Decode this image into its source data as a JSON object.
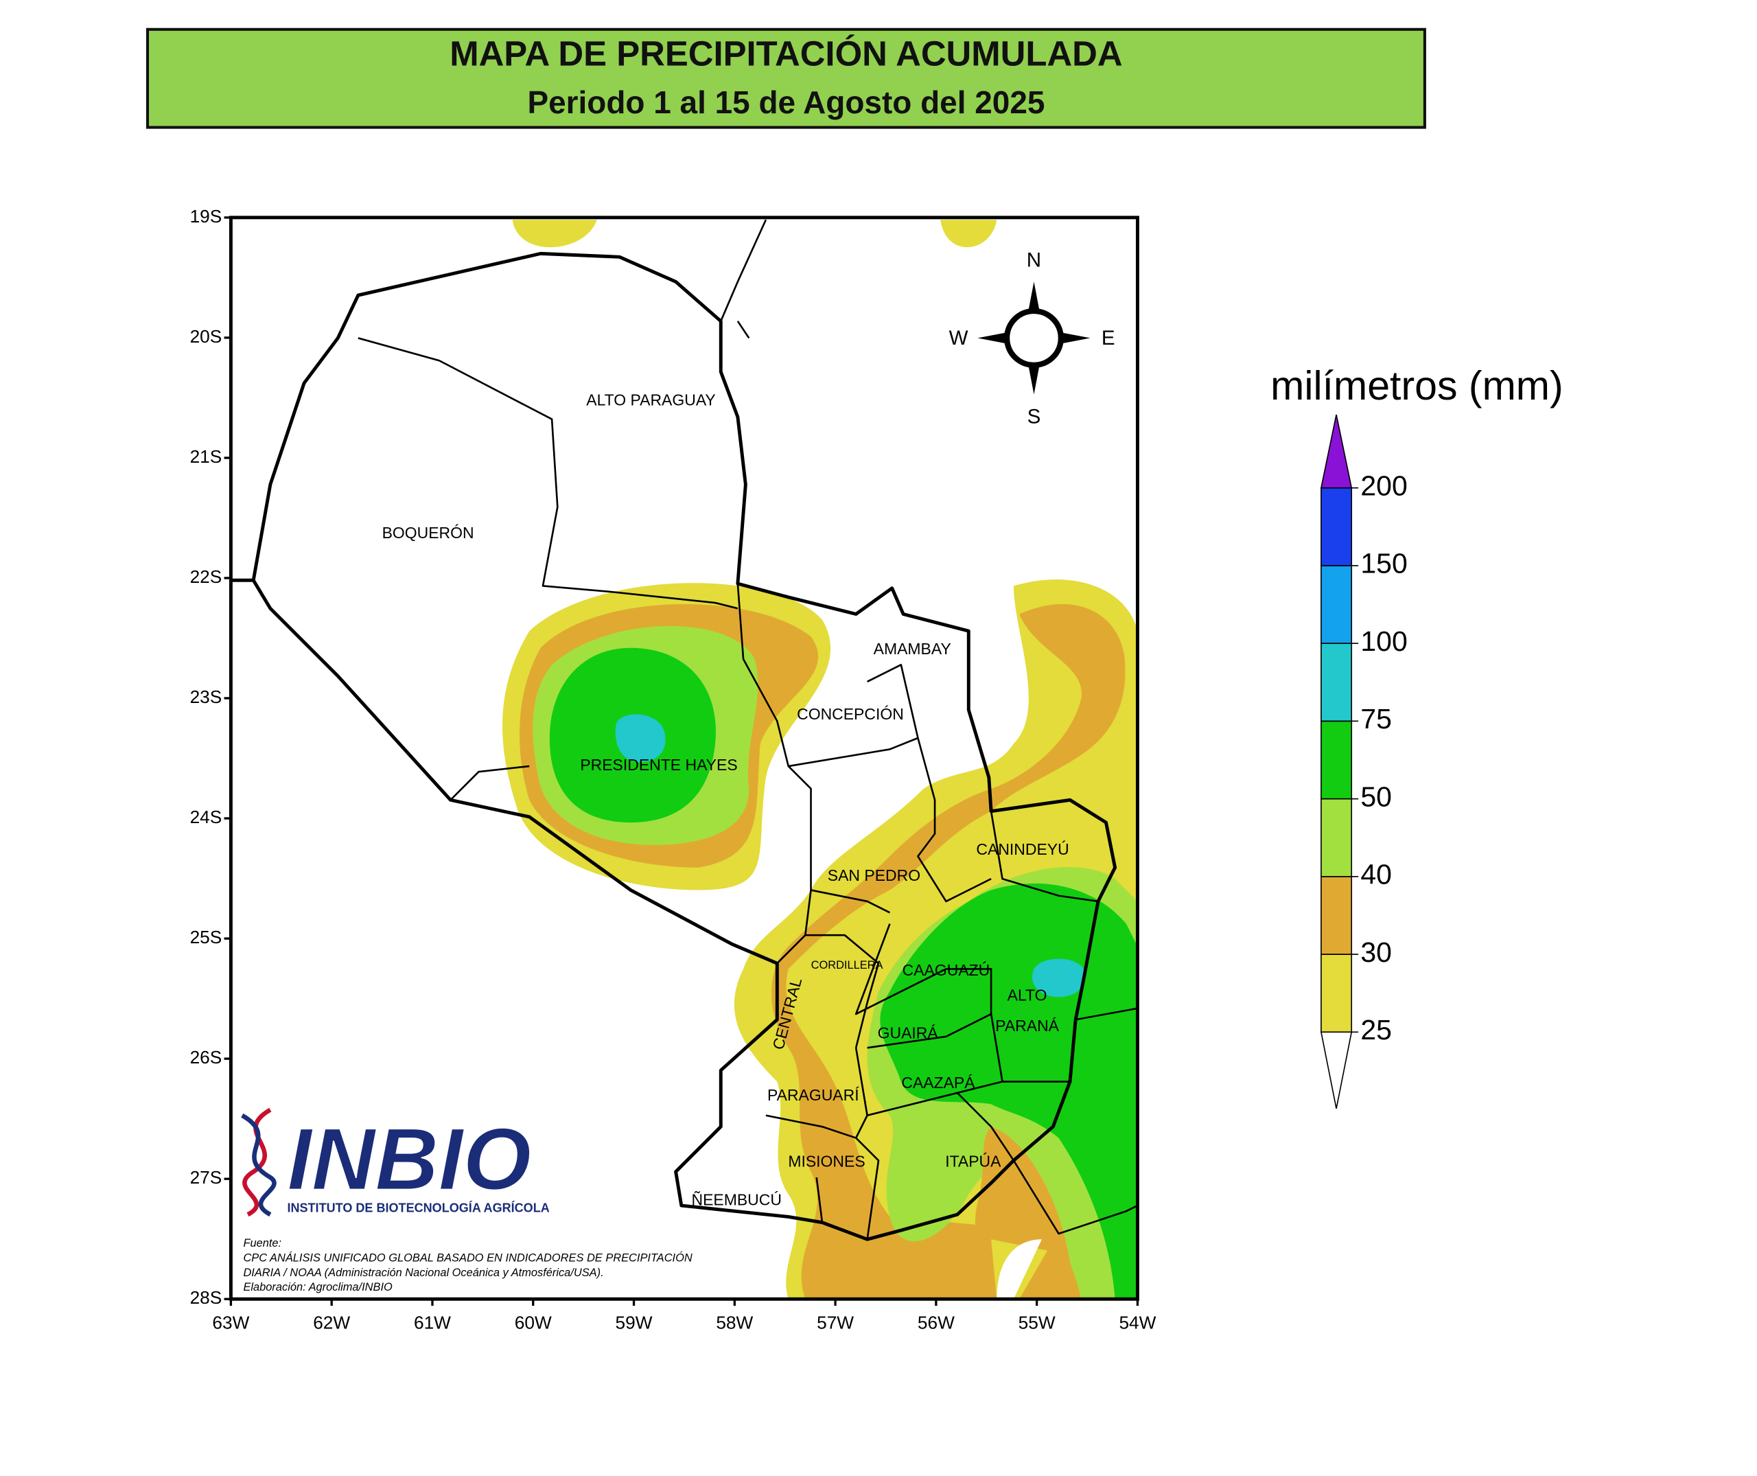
{
  "header": {
    "title": "MAPA DE PRECIPITACIÓN ACUMULADA",
    "subtitle": "Periodo 1 al 15 de Agosto del 2025"
  },
  "map": {
    "lat_ticks": [
      "19S",
      "20S",
      "21S",
      "22S",
      "23S",
      "24S",
      "25S",
      "26S",
      "27S",
      "28S"
    ],
    "lon_ticks": [
      "63W",
      "62W",
      "61W",
      "60W",
      "59W",
      "58W",
      "57W",
      "56W",
      "55W",
      "54W"
    ],
    "compass": {
      "north": "N",
      "south": "S",
      "west": "W",
      "east": "E"
    },
    "regions": [
      [
        "ALTO PARAGUAY"
      ],
      [
        "BOQUERÓN"
      ],
      [
        "AMAMBAY"
      ],
      [
        "CONCEPCIÓN"
      ],
      [
        "PRESIDENTE HAYES"
      ],
      [
        "CANINDEYÚ"
      ],
      [
        "SAN PEDRO"
      ],
      [
        "CORDILLERA"
      ],
      [
        "CAAGUAZÚ"
      ],
      [
        "CENTRAL"
      ],
      [
        "ALTO",
        "PARANÁ"
      ],
      [
        "GUAIRÁ"
      ],
      [
        "CAAZAPÁ"
      ],
      [
        "PARAGUARÍ"
      ],
      [
        "MISIONES"
      ],
      [
        "ITAPÚA"
      ],
      [
        "ÑEEMBUCÚ"
      ]
    ]
  },
  "legend": {
    "title": "milímetros (mm)",
    "levels": [
      {
        "value": 25,
        "color": "#e3dc3a"
      },
      {
        "value": 30,
        "color": "#e0aa32"
      },
      {
        "value": 40,
        "color": "#a2e040"
      },
      {
        "value": 50,
        "color": "#12cc12"
      },
      {
        "value": 75,
        "color": "#22c8cc"
      },
      {
        "value": 100,
        "color": "#12a2ee"
      },
      {
        "value": 150,
        "color": "#1a40ee"
      },
      {
        "value": 200,
        "color": "#8a12d6"
      }
    ]
  },
  "logo": {
    "name": "INBIO",
    "subtitle": "INSTITUTO DE BIOTECNOLOGÍA AGRÍCOLA"
  },
  "source": [
    "Fuente:",
    "CPC ANÁLISIS UNIFICADO GLOBAL BASADO EN INDICADORES DE PRECIPITACIÓN",
    "DIARIA / NOAA (Administración Nacional Oceánica y Atmosférica/USA).",
    "Elaboración: Agroclima/INBIO"
  ]
}
